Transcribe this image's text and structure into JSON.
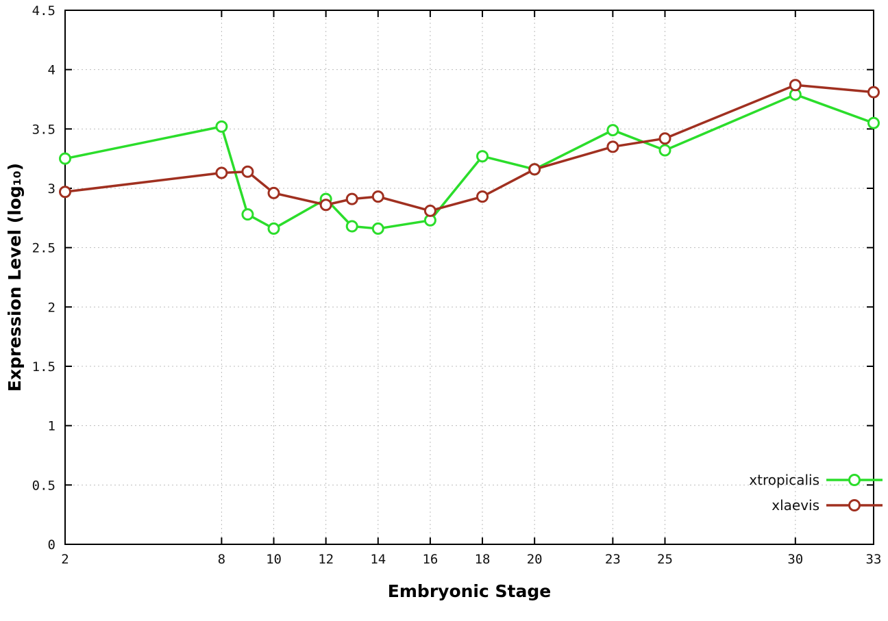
{
  "chart_data": {
    "type": "line",
    "title": "",
    "xlabel": "Embryonic Stage",
    "ylabel": "Expression Level (log₁₀)",
    "x": [
      2,
      8,
      9,
      10,
      12,
      13,
      14,
      16,
      18,
      20,
      23,
      25,
      30,
      33
    ],
    "series": [
      {
        "name": "xtropicalis",
        "color": "#2bdd2b",
        "marker": "open-circle",
        "values": [
          3.25,
          3.52,
          2.78,
          2.66,
          2.91,
          2.68,
          2.66,
          2.73,
          3.27,
          3.16,
          3.49,
          3.32,
          3.79,
          3.55
        ]
      },
      {
        "name": "xlaevis",
        "color": "#a03020",
        "marker": "open-circle",
        "values": [
          2.97,
          3.13,
          3.14,
          2.96,
          2.86,
          2.91,
          2.93,
          2.81,
          2.93,
          3.16,
          3.35,
          3.42,
          3.87,
          3.81
        ]
      }
    ],
    "xlim": [
      2,
      33
    ],
    "ylim": [
      0,
      4.5
    ],
    "xticks": [
      2,
      8,
      10,
      12,
      14,
      16,
      18,
      20,
      23,
      25,
      30,
      33
    ],
    "yticks": [
      0,
      0.5,
      1,
      1.5,
      2,
      2.5,
      3,
      3.5,
      4,
      4.5
    ],
    "ytick_labels": [
      "0",
      "0.5",
      "1",
      "1.5",
      "2",
      "2.5",
      "3",
      "3.5",
      "4",
      "4.5"
    ],
    "grid": true,
    "legend_position": "bottom-right"
  }
}
